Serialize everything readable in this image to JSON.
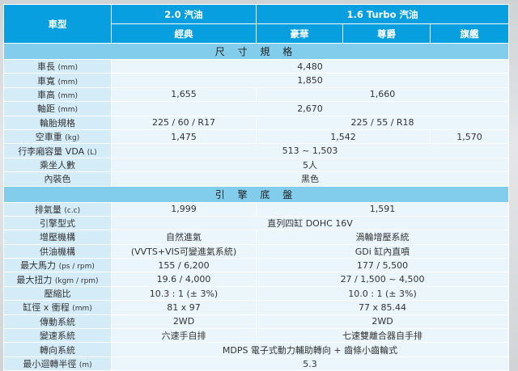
{
  "header": {
    "model_label": "車型",
    "group_a": "2.0 汽油",
    "group_b": "1.6 Turbo 汽油",
    "trims": [
      "經典",
      "豪華",
      "尊爵",
      "旗艦"
    ]
  },
  "sections": [
    {
      "title": "尺 寸 規 格",
      "rows": [
        {
          "label": "車長",
          "unit": "(mm)",
          "cells": [
            {
              "v": "4,480",
              "span": 4
            }
          ]
        },
        {
          "label": "車寬",
          "unit": "(mm)",
          "cells": [
            {
              "v": "1,850",
              "span": 4
            }
          ]
        },
        {
          "label": "車高",
          "unit": "(mm)",
          "cells": [
            {
              "v": "1,655",
              "span": 1
            },
            {
              "v": "1,660",
              "span": 3
            }
          ]
        },
        {
          "label": "軸距",
          "unit": "(mm)",
          "cells": [
            {
              "v": "2,670",
              "span": 4
            }
          ]
        },
        {
          "label": "輪胎規格",
          "unit": "",
          "cells": [
            {
              "v": "225 / 60 / R17",
              "span": 1
            },
            {
              "v": "225 / 55 / R18",
              "span": 3
            }
          ]
        },
        {
          "label": "空車重",
          "unit": "(kg)",
          "cells": [
            {
              "v": "1,475",
              "span": 1
            },
            {
              "v": "1,542",
              "span": 2
            },
            {
              "v": "1,570",
              "span": 1
            }
          ]
        },
        {
          "label": "行李廂容量 VDA",
          "unit": "(L)",
          "cells": [
            {
              "v": "513 ~ 1,503",
              "span": 4
            }
          ]
        },
        {
          "label": "乘坐人數",
          "unit": "",
          "cells": [
            {
              "v": "5人",
              "span": 4
            }
          ]
        },
        {
          "label": "內裝色",
          "unit": "",
          "cells": [
            {
              "v": "黑色",
              "span": 4
            }
          ]
        }
      ]
    },
    {
      "title": "引 擎 底 盤",
      "rows": [
        {
          "label": "排氣量",
          "unit": "(c.c)",
          "cells": [
            {
              "v": "1,999",
              "span": 1
            },
            {
              "v": "1,591",
              "span": 3
            }
          ]
        },
        {
          "label": "引擎型式",
          "unit": "",
          "cells": [
            {
              "v": "直列四缸 DOHC 16V",
              "span": 4
            }
          ]
        },
        {
          "label": "增壓機構",
          "unit": "",
          "cells": [
            {
              "v": "自然進氣",
              "span": 1
            },
            {
              "v": "渦輪增壓系統",
              "span": 3
            }
          ]
        },
        {
          "label": "供油機構",
          "unit": "",
          "cells": [
            {
              "v": "(VVTS+VIS可變進氣系統)",
              "span": 1
            },
            {
              "v": "GDi 缸內直噴",
              "span": 3
            }
          ]
        },
        {
          "label": "最大馬力",
          "unit": "(ps / rpm)",
          "cells": [
            {
              "v": "155 / 6,200",
              "span": 1
            },
            {
              "v": "177 / 5,500",
              "span": 3
            }
          ]
        },
        {
          "label": "最大扭力",
          "unit": "(kgm / rpm)",
          "cells": [
            {
              "v": "19.6 / 4,000",
              "span": 1
            },
            {
              "v": "27 / 1,500 ~ 4,500",
              "span": 3
            }
          ]
        },
        {
          "label": "壓縮比",
          "unit": "",
          "cells": [
            {
              "v": "10.3 : 1 (± 3%)",
              "span": 1
            },
            {
              "v": "10.0 : 1 (± 3%)",
              "span": 3
            }
          ]
        },
        {
          "label": "缸徑 x 衝程",
          "unit": "(mm)",
          "cells": [
            {
              "v": "81 x 97",
              "span": 1
            },
            {
              "v": "77 x 85.44",
              "span": 3
            }
          ]
        },
        {
          "label": "傳動系統",
          "unit": "",
          "cells": [
            {
              "v": "2WD",
              "span": 1
            },
            {
              "v": "2WD",
              "span": 3
            }
          ]
        },
        {
          "label": "變速系統",
          "unit": "",
          "cells": [
            {
              "v": "六速手自排",
              "span": 1
            },
            {
              "v": "七速雙離合器自手排",
              "span": 3
            }
          ]
        },
        {
          "label": "轉向系統",
          "unit": "",
          "cells": [
            {
              "v": "MDPS 電子式動力輔助轉向 + 齒條小齒輪式",
              "span": 4
            }
          ]
        },
        {
          "label": "最小迴轉半徑",
          "unit": "(m)",
          "cells": [
            {
              "v": "5.3",
              "span": 4
            }
          ]
        }
      ]
    }
  ]
}
